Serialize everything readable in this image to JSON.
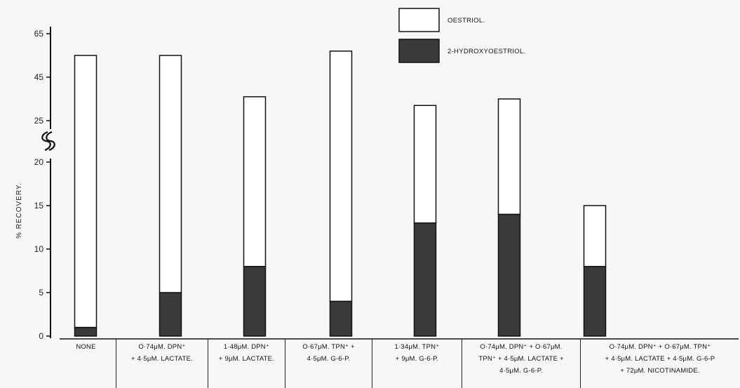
{
  "chart_data": {
    "type": "bar",
    "stacked": true,
    "ylabel": "% RECOVERY.",
    "axis_break": true,
    "ylim_lower": [
      0,
      20
    ],
    "ylim_upper": [
      25,
      65
    ],
    "yticks_lower": [
      "0",
      "5",
      "10",
      "15",
      "20"
    ],
    "yticks_upper": [
      "25",
      "45",
      "65"
    ],
    "categories": [
      "NONE",
      "O·74μM. DPN⁺\n+ 4·5μM. LACTATE.",
      "1·48μM. DPN⁺\n+ 9μM. LACTATE.",
      "O·67μM. TPN⁺ +\n4·5μM. G-6-P.",
      "1·34μM. TPN⁺\n+ 9μM. G-6-P.",
      "O·74μM. DPN⁺ + O·67μM.\nTPN⁺ + 4·5μM. LACTATE +\n4·5μM. G-6-P.",
      "O·74μM. DPN⁺ + O·67μM. TPN⁺\n+ 4·5μM. LACTATE + 4·5μM. G-6-P\n+ 72μM. NICOTINAMIDE."
    ],
    "series": [
      {
        "name": "2-HYDROXYOESTRIOL.",
        "color": "#3a3a3a",
        "values": [
          1,
          5,
          8,
          4,
          13,
          14,
          8
        ]
      },
      {
        "name": "OESTRIOL.",
        "color": "#ffffff",
        "values": [
          54,
          50,
          28,
          53,
          19,
          21,
          7
        ]
      }
    ],
    "totals": [
      55,
      55,
      36,
      57,
      32,
      35,
      15
    ],
    "legend": {
      "position": "top-right"
    }
  }
}
